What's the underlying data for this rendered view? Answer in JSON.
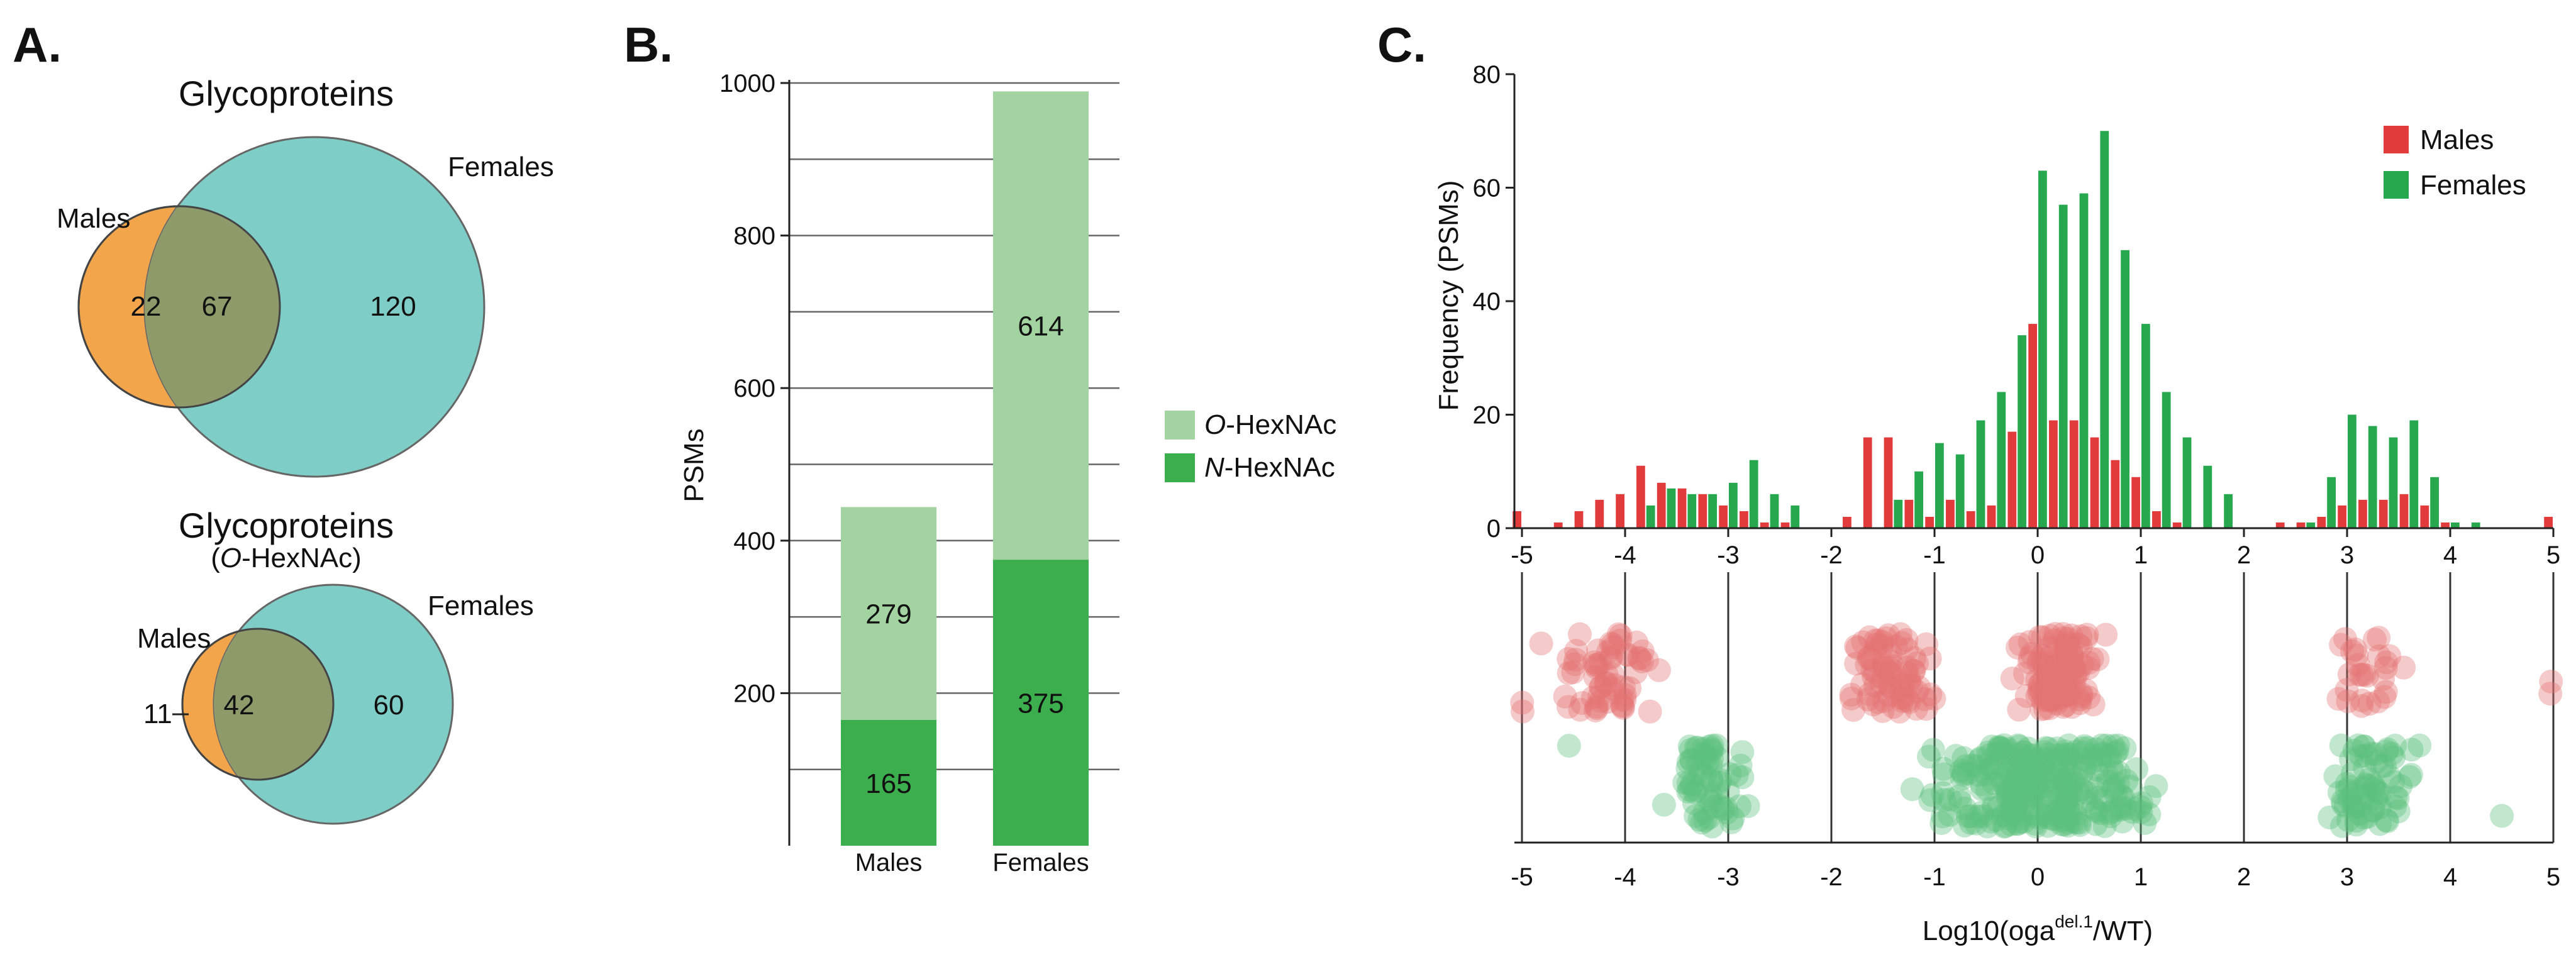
{
  "panels": {
    "a": {
      "letter": "A.",
      "venn_top": {
        "title": "Glycoproteins",
        "left_label": "Males",
        "right_label": "Females",
        "left_only": "22",
        "overlap": "67",
        "right_only": "120",
        "colors": {
          "left": "#f2a54a",
          "right": "#7ecec7",
          "overlap": "#8f9a6a"
        }
      },
      "venn_bottom": {
        "title": "Glycoproteins",
        "subtitle_pre": "(",
        "subtitle_italic": "O",
        "subtitle_post": "-HexNAc)",
        "left_label": "Males",
        "right_label": "Females",
        "left_only": "11",
        "overlap": "42",
        "right_only": "60"
      }
    },
    "b": {
      "letter": "B."
    },
    "c": {
      "letter": "C."
    }
  },
  "chart_data": [
    {
      "type": "bar",
      "stacked": true,
      "categories": [
        "Males",
        "Females"
      ],
      "series": [
        {
          "name": "N-HexNAc",
          "values": [
            165,
            375
          ],
          "color": "#3cae4e",
          "label_italic": "N",
          "label_rest": "-HexNAc"
        },
        {
          "name": "O-HexNAc",
          "values": [
            279,
            614
          ],
          "color": "#a2d3a0",
          "label_italic": "O",
          "label_rest": "-HexNAc"
        }
      ],
      "ylabel": "PSMs",
      "ylim": [
        0,
        1000
      ],
      "yticks": [
        200,
        400,
        600,
        800,
        1000
      ],
      "grid": true,
      "legend": "right"
    },
    {
      "type": "bar",
      "subtype": "histogram",
      "ylabel": "Frequency (PSMs)",
      "ylim": [
        0,
        80
      ],
      "yticks": [
        0,
        20,
        40,
        60,
        80
      ],
      "xlim": [
        -5,
        5
      ],
      "xticks": [
        "-5",
        "-4",
        "-3",
        "-2",
        "-1",
        "0",
        "1",
        "2",
        "3",
        "4",
        "5"
      ],
      "bin_centers": [
        -5.0,
        -4.8,
        -4.6,
        -4.4,
        -4.2,
        -4.0,
        -3.8,
        -3.6,
        -3.4,
        -3.2,
        -3.0,
        -2.8,
        -2.6,
        -2.4,
        -2.2,
        -2.0,
        -1.8,
        -1.6,
        -1.4,
        -1.2,
        -1.0,
        -0.8,
        -0.6,
        -0.4,
        -0.2,
        0.0,
        0.2,
        0.4,
        0.6,
        0.8,
        1.0,
        1.2,
        1.4,
        1.6,
        1.8,
        2.0,
        2.2,
        2.4,
        2.6,
        2.8,
        3.0,
        3.2,
        3.4,
        3.6,
        3.8,
        4.0,
        4.2,
        4.4,
        4.6,
        4.8,
        5.0
      ],
      "series": [
        {
          "name": "Males",
          "color": "#e13b3b",
          "values": [
            3,
            0,
            1,
            3,
            5,
            6,
            11,
            8,
            7,
            6,
            4,
            3,
            1,
            1,
            0,
            0,
            2,
            16,
            16,
            5,
            2,
            5,
            3,
            4,
            17,
            36,
            19,
            19,
            16,
            12,
            9,
            3,
            1,
            0,
            0,
            0,
            0,
            1,
            1,
            2,
            4,
            5,
            5,
            6,
            4,
            1,
            0,
            0,
            0,
            0,
            2
          ]
        },
        {
          "name": "Females",
          "color": "#27a84f",
          "values": [
            0,
            0,
            0,
            0,
            0,
            0,
            4,
            7,
            6,
            6,
            8,
            12,
            6,
            4,
            0,
            0,
            0,
            0,
            5,
            10,
            15,
            13,
            19,
            24,
            34,
            63,
            57,
            59,
            70,
            49,
            36,
            24,
            16,
            11,
            6,
            0,
            0,
            0,
            1,
            9,
            20,
            18,
            16,
            19,
            9,
            1,
            1,
            0,
            0,
            0,
            0
          ]
        }
      ],
      "legend": "top-right"
    },
    {
      "type": "scatter",
      "subtype": "strip",
      "xlabel_base": "Log10(oga",
      "xlabel_sup": "del.1",
      "xlabel_end": "/WT)",
      "xlim": [
        -5,
        5
      ],
      "xticks": [
        "-5",
        "-4",
        "-3",
        "-2",
        "-1",
        "0",
        "1",
        "2",
        "3",
        "4",
        "5"
      ],
      "guide_lines_at": [
        -5,
        -4,
        -3,
        -2,
        -1,
        0,
        1,
        2,
        3,
        4,
        5
      ],
      "series": [
        {
          "name": "Males",
          "color": "#e57373",
          "clusters": [
            [
              -5.0,
              0.1,
              2
            ],
            [
              -4.2,
              0.8,
              62
            ],
            [
              -1.4,
              0.6,
              78
            ],
            [
              0.2,
              0.5,
              118
            ],
            [
              3.2,
              0.4,
              28
            ],
            [
              5.0,
              0.05,
              2
            ]
          ]
        },
        {
          "name": "Females",
          "color": "#5cc07f",
          "clusters": [
            [
              -4.6,
              0.1,
              1
            ],
            [
              -3.2,
              0.5,
              64
            ],
            [
              0.0,
              1.5,
              290
            ],
            [
              3.2,
              0.6,
              72
            ],
            [
              4.5,
              0.05,
              1
            ]
          ]
        }
      ]
    }
  ]
}
